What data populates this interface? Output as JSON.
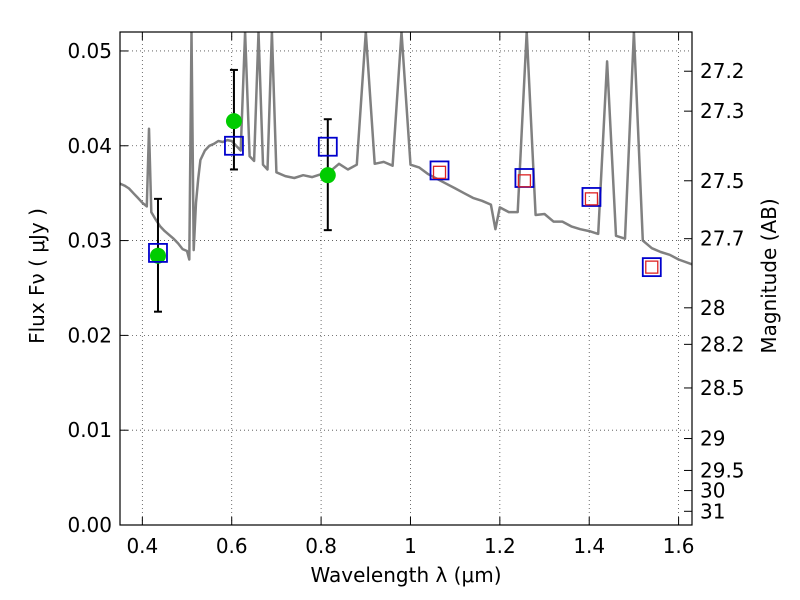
{
  "chart_data": {
    "type": "line",
    "title": "",
    "xlabel": "Wavelength  λ (μm)",
    "ylabel": "Flux  Fν  ( μJy )",
    "ylabel_right": "Magnitude (AB)",
    "xlim": [
      0.35,
      1.63
    ],
    "ylim": [
      0.0,
      0.052
    ],
    "grid": true,
    "x_ticks": [
      0.4,
      0.6,
      0.8,
      1.0,
      1.2,
      1.4,
      1.6
    ],
    "x_tick_labels": [
      "0.4",
      "0.6",
      "0.8",
      "1",
      "1.2",
      "1.4",
      "1.6"
    ],
    "y_ticks": [
      0.0,
      0.01,
      0.02,
      0.03,
      0.04,
      0.05
    ],
    "y_tick_labels": [
      "0.00",
      "0.01",
      "0.02",
      "0.03",
      "0.04",
      "0.05"
    ],
    "right_ticks": [
      {
        "label": "27.2",
        "mag": 27.2
      },
      {
        "label": "27.3",
        "mag": 27.3
      },
      {
        "label": "27.5",
        "mag": 27.5
      },
      {
        "label": "27.7",
        "mag": 27.7
      },
      {
        "label": "28",
        "mag": 28.0
      },
      {
        "label": "28.2",
        "mag": 28.2
      },
      {
        "label": "28.5",
        "mag": 28.5
      },
      {
        "label": "29",
        "mag": 29.0
      },
      {
        "label": "29.5",
        "mag": 29.5
      },
      {
        "label": "30",
        "mag": 30.0
      },
      {
        "label": "31",
        "mag": 31.0
      }
    ],
    "series": [
      {
        "kind": "line",
        "color": "#808080",
        "x": [
          0.35,
          0.36,
          0.37,
          0.38,
          0.39,
          0.4,
          0.41,
          0.415,
          0.42,
          0.43,
          0.44,
          0.45,
          0.46,
          0.47,
          0.48,
          0.49,
          0.5,
          0.505,
          0.51,
          0.515,
          0.52,
          0.525,
          0.53,
          0.54,
          0.55,
          0.56,
          0.57,
          0.58,
          0.59,
          0.6,
          0.61,
          0.62,
          0.63,
          0.64,
          0.65,
          0.66,
          0.67,
          0.68,
          0.69,
          0.7,
          0.72,
          0.74,
          0.76,
          0.78,
          0.8,
          0.82,
          0.84,
          0.86,
          0.88,
          0.9,
          0.92,
          0.94,
          0.96,
          0.98,
          1.0,
          1.02,
          1.04,
          1.06,
          1.08,
          1.1,
          1.12,
          1.14,
          1.16,
          1.18,
          1.19,
          1.2,
          1.22,
          1.24,
          1.26,
          1.28,
          1.3,
          1.32,
          1.34,
          1.36,
          1.38,
          1.4,
          1.42,
          1.44,
          1.46,
          1.48,
          1.5,
          1.52,
          1.54,
          1.56,
          1.58,
          1.6,
          1.63
        ],
        "y": [
          0.036,
          0.0358,
          0.0355,
          0.035,
          0.0345,
          0.034,
          0.0336,
          0.0418,
          0.033,
          0.0322,
          0.0315,
          0.031,
          0.0306,
          0.0302,
          0.0297,
          0.0291,
          0.0289,
          0.028,
          0.052,
          0.029,
          0.034,
          0.0365,
          0.0385,
          0.0395,
          0.04,
          0.0402,
          0.0405,
          0.0404,
          0.0406,
          0.0405,
          0.04,
          0.0395,
          0.052,
          0.0389,
          0.0384,
          0.052,
          0.038,
          0.0375,
          0.052,
          0.0372,
          0.0368,
          0.0366,
          0.0369,
          0.0367,
          0.037,
          0.0373,
          0.0381,
          0.0375,
          0.038,
          0.052,
          0.0381,
          0.0383,
          0.0379,
          0.052,
          0.038,
          0.0377,
          0.037,
          0.0365,
          0.036,
          0.0355,
          0.035,
          0.0345,
          0.0342,
          0.0338,
          0.0312,
          0.0335,
          0.033,
          0.033,
          0.052,
          0.0327,
          0.0328,
          0.032,
          0.032,
          0.0315,
          0.0312,
          0.031,
          0.0307,
          0.0489,
          0.0305,
          0.0302,
          0.052,
          0.03,
          0.0292,
          0.0288,
          0.0285,
          0.028,
          0.0275
        ]
      },
      {
        "kind": "errorbar",
        "color": "#000000",
        "points": [
          {
            "x": 0.435,
            "low": 0.0225,
            "high": 0.0344
          },
          {
            "x": 0.605,
            "low": 0.0375,
            "high": 0.048
          },
          {
            "x": 0.815,
            "low": 0.0311,
            "high": 0.0428
          }
        ]
      },
      {
        "kind": "scatter",
        "marker": "circle",
        "color": "#00cc00",
        "points": [
          {
            "x": 0.435,
            "y": 0.0284
          },
          {
            "x": 0.605,
            "y": 0.0426
          },
          {
            "x": 0.815,
            "y": 0.0369
          }
        ]
      },
      {
        "kind": "scatter",
        "marker": "square",
        "color": "#0000cc",
        "points": [
          {
            "x": 0.435,
            "y": 0.0287
          },
          {
            "x": 0.605,
            "y": 0.04
          },
          {
            "x": 0.815,
            "y": 0.0399
          },
          {
            "x": 1.065,
            "y": 0.0374
          },
          {
            "x": 1.255,
            "y": 0.0366
          },
          {
            "x": 1.405,
            "y": 0.0346
          },
          {
            "x": 1.54,
            "y": 0.0272
          }
        ]
      },
      {
        "kind": "scatter",
        "marker": "square-small",
        "color": "#dd2222",
        "points": [
          {
            "x": 1.065,
            "y": 0.0372
          },
          {
            "x": 1.255,
            "y": 0.0363
          },
          {
            "x": 1.405,
            "y": 0.0344
          },
          {
            "x": 1.54,
            "y": 0.0272
          }
        ]
      }
    ]
  }
}
